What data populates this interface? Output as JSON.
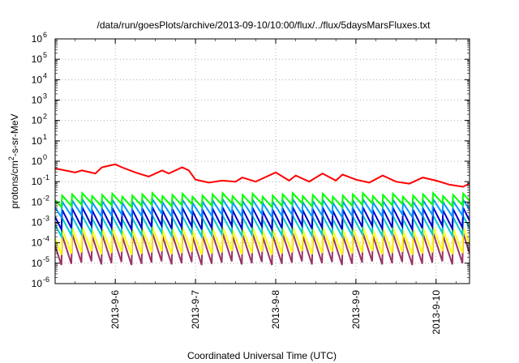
{
  "chart_data": {
    "type": "line",
    "title": "/data/run/goesPlots/archive/2013-09-10/10:00/flux/../flux/5daysMarsFluxes.txt",
    "xlabel": "Coordinated Universal Time (UTC)",
    "ylabel_parts": [
      "protons/cm",
      "2",
      "-s-sr-MeV"
    ],
    "y_scale": "log",
    "ylim_exp": [
      -6,
      6
    ],
    "y_ticks": [
      {
        "base": "10",
        "exp": "-6"
      },
      {
        "base": "10",
        "exp": "-5"
      },
      {
        "base": "10",
        "exp": "-4"
      },
      {
        "base": "10",
        "exp": "-3"
      },
      {
        "base": "10",
        "exp": "-2"
      },
      {
        "base": "10",
        "exp": "-1"
      },
      {
        "base": "10",
        "exp": "0"
      },
      {
        "base": "10",
        "exp": "1"
      },
      {
        "base": "10",
        "exp": "2"
      },
      {
        "base": "10",
        "exp": "3"
      },
      {
        "base": "10",
        "exp": "4"
      },
      {
        "base": "10",
        "exp": "5"
      },
      {
        "base": "10",
        "exp": "6"
      }
    ],
    "x_range": [
      "2013-09-05T06:00",
      "2013-09-10T10:00"
    ],
    "x_ticks": [
      {
        "label": "2013-9-6",
        "at": "2013-09-06T00:00"
      },
      {
        "label": "2013-9-7",
        "at": "2013-09-07T00:00"
      },
      {
        "label": "2013-9-8",
        "at": "2013-09-08T00:00"
      },
      {
        "label": "2013-9-9",
        "at": "2013-09-09T00:00"
      },
      {
        "label": "2013-9-10",
        "at": "2013-09-10T00:00"
      }
    ],
    "grid": "dotted",
    "legend": "none",
    "series": [
      {
        "color": "#ff0000",
        "x": [
          "2013-09-05T06:00",
          "2013-09-05T12:00",
          "2013-09-05T14:00",
          "2013-09-05T18:00",
          "2013-09-05T20:00",
          "2013-09-06T00:00",
          "2013-09-06T02:00",
          "2013-09-06T06:00",
          "2013-09-06T10:00",
          "2013-09-06T14:00",
          "2013-09-06T16:00",
          "2013-09-06T20:00",
          "2013-09-06T22:00",
          "2013-09-07T00:00",
          "2013-09-07T04:00",
          "2013-09-07T08:00",
          "2013-09-07T12:00",
          "2013-09-07T14:00",
          "2013-09-07T18:00",
          "2013-09-07T20:00",
          "2013-09-08T00:00",
          "2013-09-08T04:00",
          "2013-09-08T06:00",
          "2013-09-08T10:00",
          "2013-09-08T14:00",
          "2013-09-08T18:00",
          "2013-09-08T20:00",
          "2013-09-09T00:00",
          "2013-09-09T04:00",
          "2013-09-09T08:00",
          "2013-09-09T12:00",
          "2013-09-09T16:00",
          "2013-09-09T20:00",
          "2013-09-10T00:00",
          "2013-09-10T04:00",
          "2013-09-10T08:00",
          "2013-09-10T10:00"
        ],
        "y_exp": [
          -0.35,
          -0.55,
          -0.45,
          -0.6,
          -0.3,
          -0.15,
          -0.3,
          -0.55,
          -0.75,
          -0.45,
          -0.6,
          -0.3,
          -0.45,
          -0.9,
          -1.05,
          -0.95,
          -1.0,
          -0.8,
          -1.0,
          -0.85,
          -0.55,
          -0.95,
          -0.7,
          -1.0,
          -0.6,
          -0.95,
          -0.65,
          -0.9,
          -1.05,
          -0.7,
          -1.0,
          -1.1,
          -0.8,
          -0.95,
          -1.15,
          -1.25,
          -1.1
        ]
      },
      {
        "color": "#00ff00",
        "x_period_hours": 3,
        "y_exp_peak": -1.65,
        "y_exp_trough": -2.15
      },
      {
        "color": "#0099ff",
        "x_period_hours": 3,
        "y_exp_peak": -1.95,
        "y_exp_trough": -2.65
      },
      {
        "color": "#0000cc",
        "x_period_hours": 3,
        "y_exp_peak": -2.35,
        "y_exp_trough": -3.25
      },
      {
        "color": "#00cccc",
        "x_period_hours": 3,
        "y_exp_peak": -2.75,
        "y_exp_trough": -3.6
      },
      {
        "color": "#ffff00",
        "x_period_hours": 3,
        "y_exp_peak": -3.3,
        "y_exp_trough": -4.5
      },
      {
        "color": "#993366",
        "x_period_hours": 3,
        "y_exp_peak": -3.6,
        "y_exp_trough": -5.0
      }
    ]
  }
}
